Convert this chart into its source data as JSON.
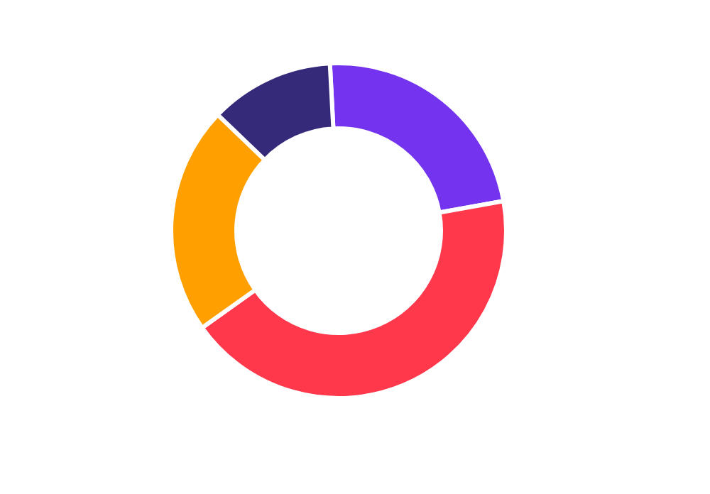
{
  "chart_data": {
    "type": "donut",
    "categories": [
      null,
      null,
      null,
      null
    ],
    "values": [
      23,
      43,
      22,
      12
    ],
    "colors": [
      "#7433ee",
      "#ff384c",
      "#ff9f00",
      "#35297a"
    ]
  }
}
